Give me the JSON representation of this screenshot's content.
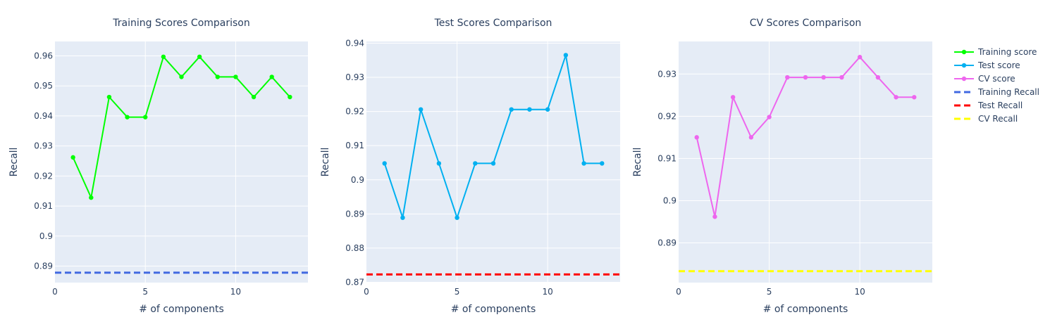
{
  "legend": {
    "items": [
      {
        "label": "Training score",
        "color": "#00ff00",
        "style": "line-marker"
      },
      {
        "label": "Test score",
        "color": "#00b0f0",
        "style": "line-marker"
      },
      {
        "label": "CV score",
        "color": "#ee66ee",
        "style": "line-marker"
      },
      {
        "label": "Training Recall",
        "color": "#4169e1",
        "style": "dash"
      },
      {
        "label": "Test Recall",
        "color": "#ff0000",
        "style": "dash"
      },
      {
        "label": "CV Recall",
        "color": "#ffff00",
        "style": "dash"
      }
    ]
  },
  "chart_data": [
    {
      "type": "line",
      "title": "Training Scores Comparison",
      "xlabel": "# of components",
      "ylabel": "Recall",
      "xlim": [
        0,
        14
      ],
      "ylim": [
        0.8845,
        0.9648
      ],
      "xticks": [
        0,
        5,
        10
      ],
      "yticks": [
        0.89,
        0.9,
        0.91,
        0.92,
        0.93,
        0.94,
        0.95,
        0.96
      ],
      "ytick_labels": [
        "0.89",
        "0.9",
        "0.91",
        "0.92",
        "0.93",
        "0.94",
        "0.95",
        "0.96"
      ],
      "series": {
        "name": "Training score",
        "color": "#00ff00",
        "x": [
          1,
          2,
          3,
          4,
          5,
          6,
          7,
          8,
          9,
          10,
          11,
          12,
          13
        ],
        "y": [
          0.9262,
          0.9128,
          0.9463,
          0.9396,
          0.9396,
          0.9597,
          0.953,
          0.9597,
          0.953,
          0.953,
          0.9463,
          0.953,
          0.9463
        ]
      },
      "reference": {
        "name": "Training Recall",
        "color": "#4169e1",
        "y": 0.8878,
        "x_range": [
          0,
          14
        ]
      }
    },
    {
      "type": "line",
      "title": "Test Scores Comparison",
      "xlabel": "# of components",
      "ylabel": "Recall",
      "xlim": [
        0,
        14
      ],
      "ylim": [
        0.8699,
        0.9405
      ],
      "xticks": [
        0,
        5,
        10
      ],
      "yticks": [
        0.87,
        0.88,
        0.89,
        0.9,
        0.91,
        0.92,
        0.93,
        0.94
      ],
      "ytick_labels": [
        "0.87",
        "0.88",
        "0.89",
        "0.9",
        "0.91",
        "0.92",
        "0.93",
        "0.94"
      ],
      "series": {
        "name": "Test score",
        "color": "#00b0f0",
        "x": [
          1,
          2,
          3,
          4,
          5,
          6,
          7,
          8,
          9,
          10,
          11,
          12,
          13
        ],
        "y": [
          0.9048,
          0.8889,
          0.9206,
          0.9048,
          0.8889,
          0.9048,
          0.9048,
          0.9206,
          0.9206,
          0.9206,
          0.9365,
          0.9048,
          0.9048
        ]
      },
      "reference": {
        "name": "Test Recall",
        "color": "#ff0000",
        "y": 0.8723,
        "x_range": [
          0,
          14
        ]
      }
    },
    {
      "type": "line",
      "title": "CV Scores Comparison",
      "xlabel": "# of components",
      "ylabel": "Recall",
      "xlim": [
        0,
        14
      ],
      "ylim": [
        0.8806,
        0.9377
      ],
      "xticks": [
        0,
        5,
        10
      ],
      "yticks": [
        0.89,
        0.9,
        0.91,
        0.92,
        0.93
      ],
      "ytick_labels": [
        "0.89",
        "0.9",
        "0.91",
        "0.92",
        "0.93"
      ],
      "series": {
        "name": "CV score",
        "color": "#ee66ee",
        "x": [
          1,
          2,
          3,
          4,
          5,
          6,
          7,
          8,
          9,
          10,
          11,
          12,
          13
        ],
        "y": [
          0.915,
          0.8962,
          0.9245,
          0.915,
          0.9198,
          0.9292,
          0.9292,
          0.9292,
          0.9292,
          0.934,
          0.9292,
          0.9245,
          0.9245
        ]
      },
      "reference": {
        "name": "CV Recall",
        "color": "#ffff00",
        "y": 0.8833,
        "x_range": [
          0,
          14
        ]
      }
    }
  ]
}
